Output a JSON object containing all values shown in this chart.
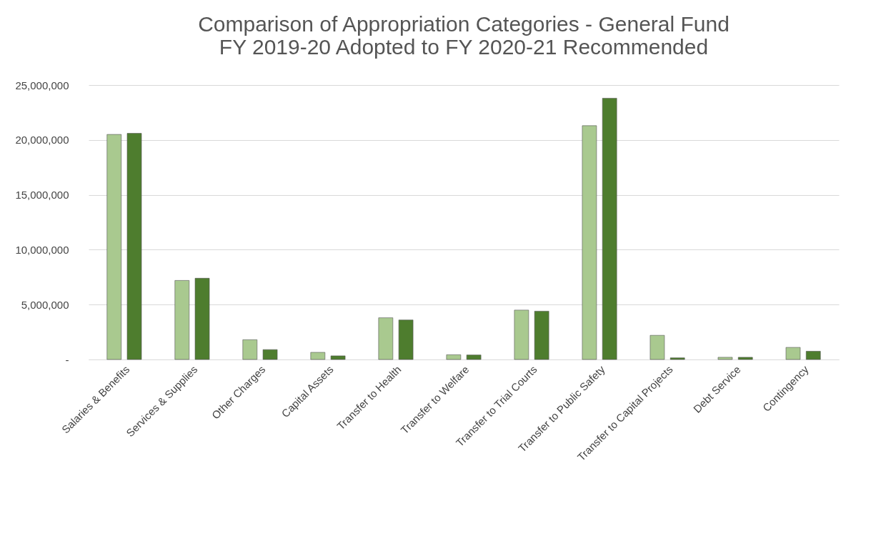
{
  "chart_data": {
    "type": "bar",
    "title": [
      "Comparison of Appropriation Categories - General Fund",
      "FY 2019-20 Adopted to FY 2020-21 Recommended"
    ],
    "categories": [
      "Salaries & Benefits",
      "Services & Supplies",
      "Other Charges",
      "Capital Assets",
      "Transfer to Health",
      "Transfer to Welfare",
      "Transfer to Trial Courts",
      "Transfer to Public Safety",
      "Transfer to Capital Projects",
      "Debt Service",
      "Contingency"
    ],
    "series": [
      {
        "color": "#a9c98f",
        "values": [
          20500000,
          7200000,
          1800000,
          650000,
          3800000,
          430000,
          4500000,
          21300000,
          2200000,
          200000,
          1100000
        ]
      },
      {
        "color": "#4e7d2e",
        "values": [
          20600000,
          7400000,
          900000,
          330000,
          3600000,
          410000,
          4400000,
          23800000,
          150000,
          200000,
          750000
        ]
      }
    ],
    "ylim": [
      0,
      25000000
    ],
    "yticks": [
      {
        "value": 0,
        "label": "-"
      },
      {
        "value": 5000000,
        "label": "5,000,000"
      },
      {
        "value": 10000000,
        "label": "10,000,000"
      },
      {
        "value": 15000000,
        "label": "15,000,000"
      },
      {
        "value": 20000000,
        "label": "20,000,000"
      },
      {
        "value": 25000000,
        "label": "25,000,000"
      }
    ],
    "grid": "y",
    "legend": false
  }
}
